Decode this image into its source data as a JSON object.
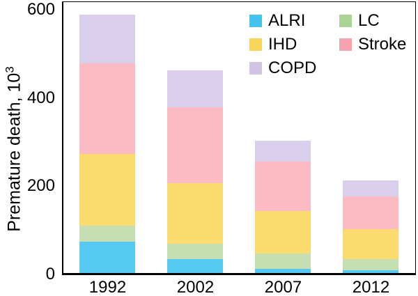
{
  "chart_data": {
    "type": "bar",
    "stacked": true,
    "title": "",
    "categories": [
      "1992",
      "2002",
      "2007",
      "2012"
    ],
    "stack_order_bottom_to_top": [
      "ALRI",
      "LC",
      "IHD",
      "Stroke",
      "COPD"
    ],
    "series": [
      {
        "name": "ALRI",
        "values": [
          72,
          31,
          10,
          7
        ],
        "color": "#55C9F1"
      },
      {
        "name": "LC",
        "values": [
          36,
          35,
          35,
          25
        ],
        "color": "#C5DFB3"
      },
      {
        "name": "IHD",
        "values": [
          162,
          139,
          96,
          68
        ],
        "color": "#FCDB6E"
      },
      {
        "name": "Stroke",
        "values": [
          206,
          171,
          112,
          74
        ],
        "color": "#FCBAC2"
      },
      {
        "name": "COPD",
        "values": [
          111,
          84,
          47,
          36
        ],
        "color": "#DACEED"
      }
    ],
    "totals": [
      587,
      460,
      300,
      210
    ],
    "xlabel": "",
    "ylabel": "Premature death, 10³",
    "ylabel_base": "Premature death, 10",
    "ylabel_exponent": "3",
    "yticks": [
      "0",
      "200",
      "400",
      "600"
    ],
    "ylim": [
      0,
      620
    ],
    "grid": false,
    "legend_position": "top-right-inside",
    "legend_columns": [
      [
        "ALRI",
        "IHD",
        "COPD"
      ],
      [
        "LC",
        "Stroke"
      ]
    ],
    "legend_colors": {
      "ALRI": "#45C2EE",
      "IHD": "#F8D65B",
      "COPD": "#D3C4E6",
      "LC": "#A9D494",
      "Stroke": "#F8A2B0"
    },
    "axis_color": "#000000",
    "background_color": "#FFFFFF"
  }
}
